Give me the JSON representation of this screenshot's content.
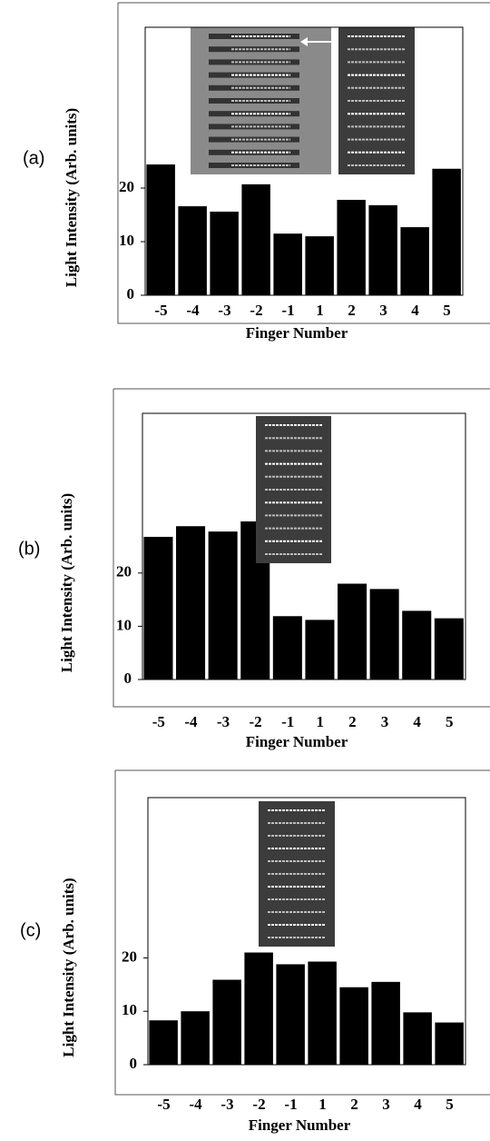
{
  "chart_data": [
    {
      "type": "bar",
      "label": "(a)",
      "y_label": "Light Intensity (Arb. units)",
      "x_label": "Finger Number",
      "categories": [
        "-5",
        "-4",
        "-3",
        "-2",
        "-1",
        "1",
        "2",
        "3",
        "4",
        "5"
      ],
      "values": [
        24.4,
        16.6,
        15.6,
        20.7,
        11.5,
        11,
        17.8,
        16.8,
        12.7,
        23.6
      ],
      "color": "#000000",
      "ylim": [
        0,
        50
      ],
      "yticks": [
        0,
        10,
        20
      ]
    },
    {
      "type": "bar",
      "label": "(b)",
      "y_label": "Light Intensity (Arb. units)",
      "x_label": "Finger Number",
      "categories": [
        "-5",
        "-4",
        "-3",
        "-2",
        "-1",
        "1",
        "2",
        "3",
        "4",
        "5"
      ],
      "values": [
        26.8,
        28.8,
        27.8,
        29.7,
        11.9,
        11.2,
        18,
        17,
        12.9,
        11.5
      ],
      "color": "#000000",
      "ylim": [
        0,
        50
      ],
      "yticks": [
        0,
        10,
        20
      ]
    },
    {
      "type": "bar",
      "label": "(c)",
      "y_label": "Light Intensity (Arb. units)",
      "x_label": "Finger Number",
      "categories": [
        "-5",
        "-4",
        "-3",
        "-2",
        "-1",
        "1",
        "2",
        "3",
        "4",
        "5"
      ],
      "values": [
        8.3,
        10,
        15.9,
        21,
        18.8,
        19.3,
        14.5,
        15.5,
        9.8,
        7.9
      ],
      "color": "#000000",
      "ylim": [
        0,
        50
      ],
      "yticks": [
        0,
        10,
        20
      ]
    }
  ]
}
